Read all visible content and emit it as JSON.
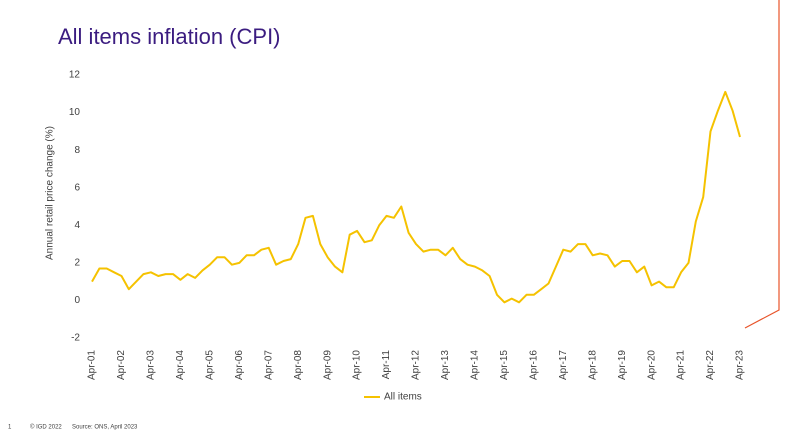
{
  "chart_data": {
    "type": "line",
    "title": "All items inflation (CPI)",
    "y_label": "Annual retail price change (%)",
    "categories": [
      "Apr-01",
      null,
      null,
      null,
      "Apr-02",
      null,
      null,
      null,
      "Apr-03",
      null,
      null,
      null,
      "Apr-04",
      null,
      null,
      null,
      "Apr-05",
      null,
      null,
      null,
      "Apr-06",
      null,
      null,
      null,
      "Apr-07",
      null,
      null,
      null,
      "Apr-08",
      null,
      null,
      null,
      "Apr-09",
      null,
      null,
      null,
      "Apr-10",
      null,
      null,
      null,
      "Apr-11",
      null,
      null,
      null,
      "Apr-12",
      null,
      null,
      null,
      "Apr-13",
      null,
      null,
      null,
      "Apr-14",
      null,
      null,
      null,
      "Apr-15",
      null,
      null,
      null,
      "Apr-16",
      null,
      null,
      null,
      "Apr-17",
      null,
      null,
      null,
      "Apr-18",
      null,
      null,
      null,
      "Apr-19",
      null,
      null,
      null,
      "Apr-20",
      null,
      null,
      null,
      "Apr-21",
      null,
      null,
      null,
      "Apr-22",
      null,
      null,
      null,
      "Apr-23"
    ],
    "series": [
      {
        "name": "All items",
        "color": "#f5c200",
        "values": [
          1.0,
          1.7,
          1.7,
          1.5,
          1.3,
          0.6,
          1.0,
          1.4,
          1.5,
          1.3,
          1.4,
          1.4,
          1.1,
          1.4,
          1.2,
          1.6,
          1.9,
          2.3,
          2.3,
          1.9,
          2.0,
          2.4,
          2.4,
          2.7,
          2.8,
          1.9,
          2.1,
          2.2,
          3.0,
          4.4,
          4.5,
          3.0,
          2.3,
          1.8,
          1.5,
          3.5,
          3.7,
          3.1,
          3.2,
          4.0,
          4.5,
          4.4,
          5.0,
          3.6,
          3.0,
          2.6,
          2.7,
          2.7,
          2.4,
          2.8,
          2.2,
          1.9,
          1.8,
          1.6,
          1.3,
          0.3,
          -0.1,
          0.1,
          -0.1,
          0.3,
          0.3,
          0.6,
          0.9,
          1.8,
          2.7,
          2.6,
          3.0,
          3.0,
          2.4,
          2.5,
          2.4,
          1.8,
          2.1,
          2.1,
          1.5,
          1.8,
          0.8,
          1.0,
          0.7,
          0.7,
          1.5,
          2.0,
          4.2,
          5.5,
          9.0,
          10.1,
          11.1,
          10.1,
          8.7
        ]
      }
    ],
    "ylim": [
      -2,
      12
    ],
    "yticks": [
      -2,
      0,
      2,
      4,
      6,
      8,
      10,
      12
    ],
    "grid": false,
    "legend": "bottom"
  },
  "footer": {
    "page": "1",
    "copyright": "© IGD 2022",
    "source": "Source: ONS, April 2023"
  }
}
